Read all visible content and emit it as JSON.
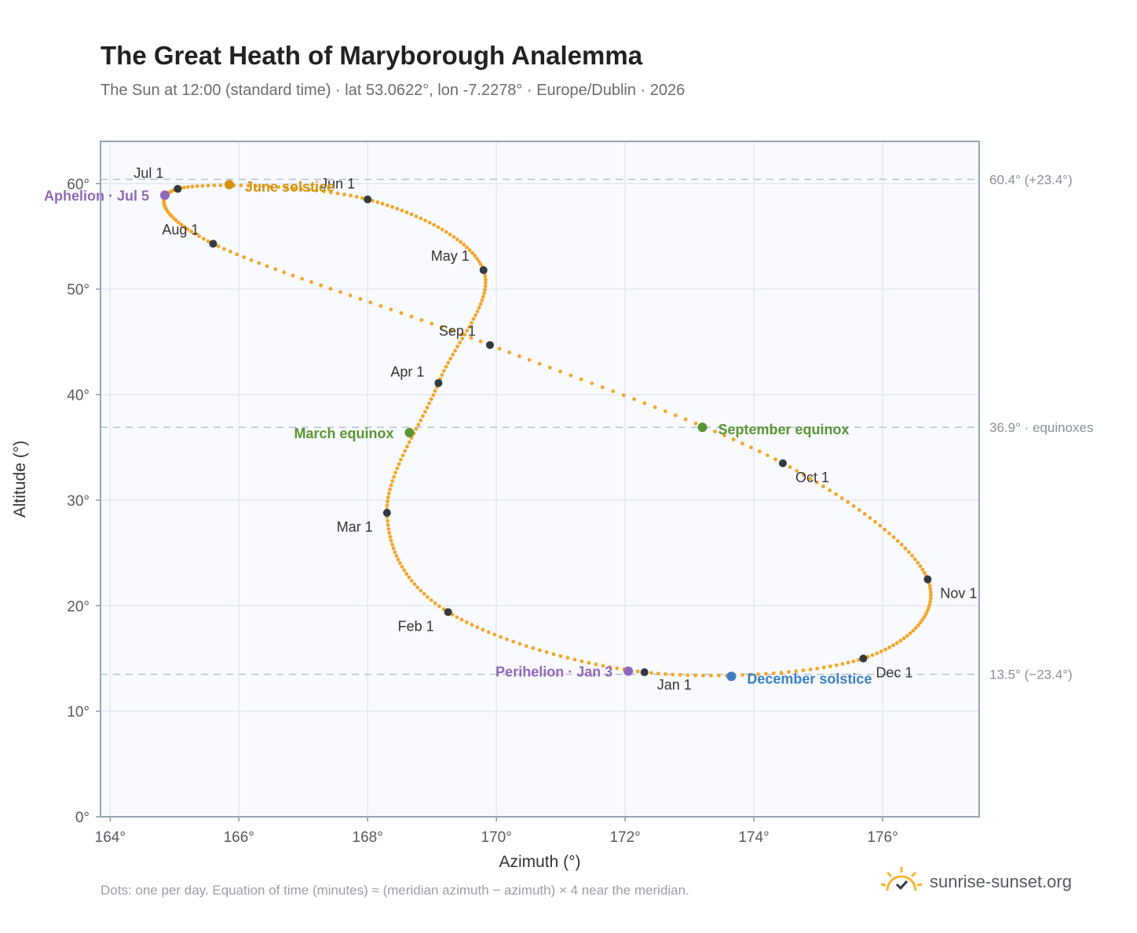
{
  "header": {
    "title": "The Great Heath of Maryborough Analemma",
    "subtitle": "The Sun at 12:00 (standard time) · lat 53.0622°, lon -7.2278° · Europe/Dublin · 2026"
  },
  "footer": {
    "note": "Dots: one per day. Equation of time (minutes) ≈ (meridian azimuth − azimuth) × 4 near the meridian.",
    "brand": "sunrise-sunset.org",
    "brand_icon": "sun-check-icon"
  },
  "colors": {
    "curve": "#f2a62a",
    "month_dot": "#333a42",
    "solstice_june": "#d4920f",
    "solstice_december": "#3a7ec4",
    "equinox": "#5a9433",
    "apsis": "#9068b8",
    "plot_bg": "#f8fafd",
    "grid": "#e3e8ee",
    "ref_line": "#b6c2cf"
  },
  "chart_data": {
    "type": "scatter",
    "title": "The Great Heath of Maryborough Analemma",
    "xlabel": "Azimuth (°)",
    "ylabel": "Altitude (°)",
    "xlim": [
      163.85,
      177.5
    ],
    "ylim": [
      0,
      64
    ],
    "grid": true,
    "x_ticks": [
      164,
      166,
      168,
      170,
      172,
      174,
      176
    ],
    "x_tick_labels": [
      "164°",
      "166°",
      "168°",
      "170°",
      "172°",
      "174°",
      "176°"
    ],
    "y_ticks": [
      0,
      10,
      20,
      30,
      40,
      50,
      60
    ],
    "y_tick_labels": [
      "0°",
      "10°",
      "20°",
      "30°",
      "40°",
      "50°",
      "60°"
    ],
    "reference_lines": [
      {
        "y": 60.4,
        "label": "60.4° (+23.4°)"
      },
      {
        "y": 36.9,
        "label": "36.9° · equinoxes"
      },
      {
        "y": 13.5,
        "label": "13.5° (−23.4°)"
      }
    ],
    "months": [
      {
        "label": "Jan 1",
        "az": 172.3,
        "alt": 13.7
      },
      {
        "label": "Feb 1",
        "az": 169.25,
        "alt": 19.4
      },
      {
        "label": "Mar 1",
        "az": 168.3,
        "alt": 28.8
      },
      {
        "label": "Apr 1",
        "az": 169.1,
        "alt": 41.1
      },
      {
        "label": "May 1",
        "az": 169.8,
        "alt": 51.8
      },
      {
        "label": "Jun 1",
        "az": 168.0,
        "alt": 58.5
      },
      {
        "label": "Jul 1",
        "az": 165.05,
        "alt": 59.5
      },
      {
        "label": "Aug 1",
        "az": 165.6,
        "alt": 54.3
      },
      {
        "label": "Sep 1",
        "az": 169.9,
        "alt": 44.7
      },
      {
        "label": "Oct 1",
        "az": 174.45,
        "alt": 33.5
      },
      {
        "label": "Nov 1",
        "az": 176.7,
        "alt": 22.5
      },
      {
        "label": "Dec 1",
        "az": 175.7,
        "alt": 15.0
      }
    ],
    "events": [
      {
        "label": "June solstice",
        "az": 165.85,
        "alt": 59.9,
        "kind": "solstice_june"
      },
      {
        "label": "December solstice",
        "az": 173.65,
        "alt": 13.3,
        "kind": "solstice_december"
      },
      {
        "label": "March equinox",
        "az": 168.65,
        "alt": 36.4,
        "kind": "equinox"
      },
      {
        "label": "September equinox",
        "az": 173.2,
        "alt": 36.9,
        "kind": "equinox"
      },
      {
        "label": "Aphelion · Jul 5",
        "az": 164.85,
        "alt": 58.9,
        "kind": "apsis"
      },
      {
        "label": "Perihelion · Jan 3",
        "az": 172.05,
        "alt": 13.8,
        "kind": "apsis"
      }
    ]
  }
}
